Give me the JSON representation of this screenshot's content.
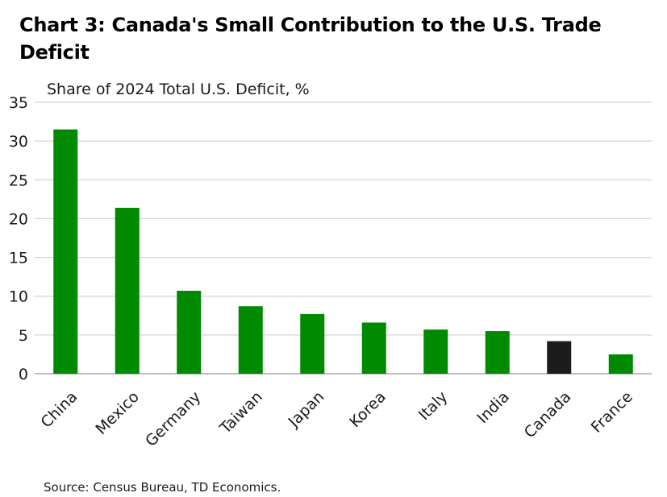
{
  "title": "Chart 3: Canada's Small Contribution to the U.S. Trade Deficit",
  "source": "Source: Census Bureau, TD Economics.",
  "colors": {
    "bar": "#008a00",
    "highlight": "#1c1c1c"
  },
  "chart_data": {
    "type": "bar",
    "title": "Chart 3: Canada's Small Contribution to the U.S. Trade Deficit",
    "subtitle": "Share of 2024 Total U.S. Deficit, %",
    "xlabel": "",
    "ylabel": "Share of 2024 Total U.S. Deficit, %",
    "categories": [
      "China",
      "Mexico",
      "Germany",
      "Taiwan",
      "Japan",
      "Korea",
      "Italy",
      "India",
      "Canada",
      "France"
    ],
    "values": [
      31.5,
      21.4,
      10.7,
      8.7,
      7.7,
      6.6,
      5.7,
      5.5,
      4.2,
      2.5
    ],
    "highlight": "Canada",
    "ylim": [
      0,
      35
    ],
    "yticks": [
      0,
      5,
      10,
      15,
      20,
      25,
      30,
      35
    ],
    "grid": true,
    "legend": "none"
  }
}
